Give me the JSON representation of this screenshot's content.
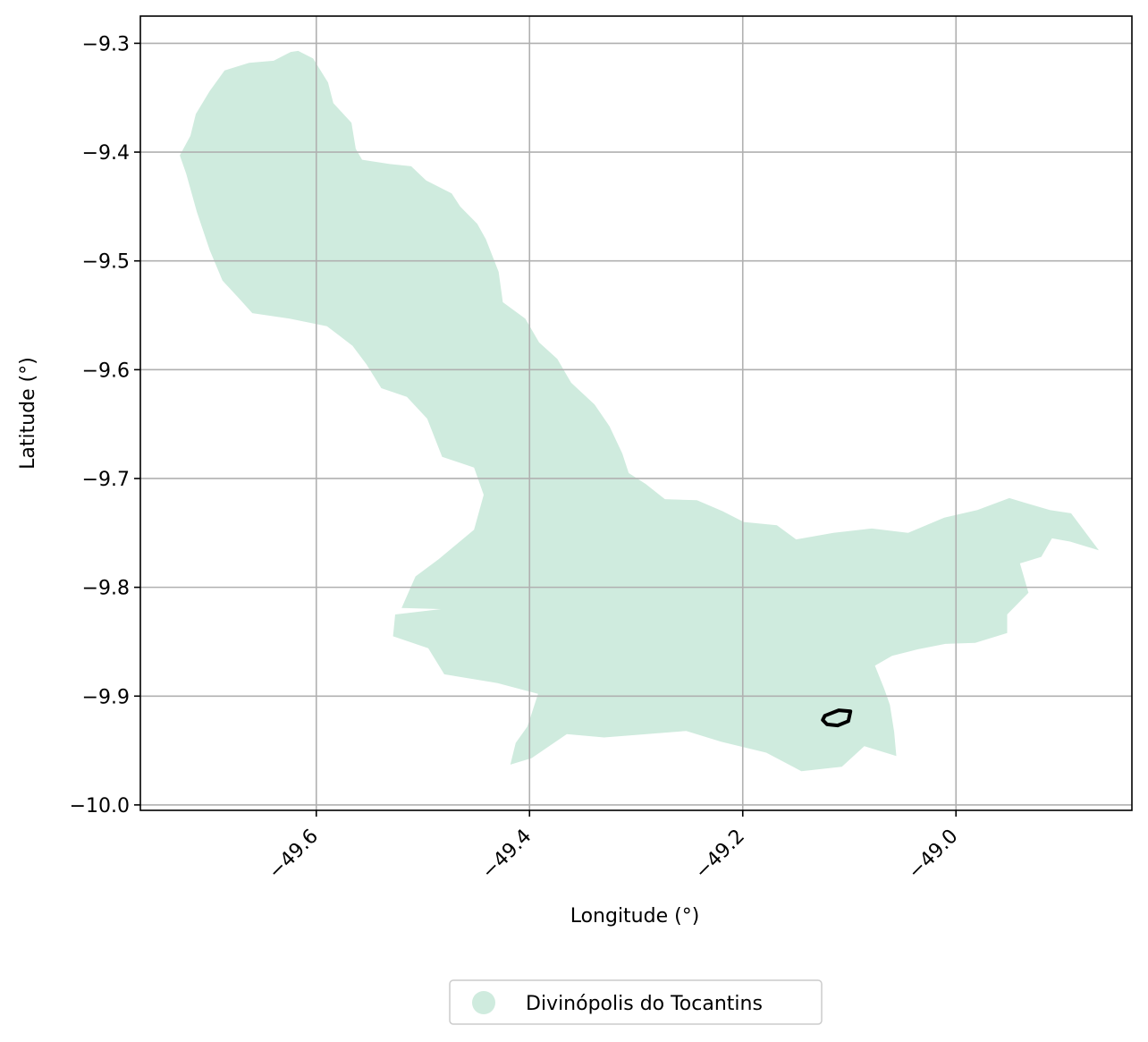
{
  "chart_data": {
    "type": "map",
    "xlabel": "Longitude (°)",
    "ylabel": "Latitude (°)",
    "xlim": [
      -49.765,
      -48.835
    ],
    "ylim": [
      -10.005,
      -9.275
    ],
    "grid": true,
    "xticks": [
      {
        "value": -49.6,
        "label": "−49.6"
      },
      {
        "value": -49.4,
        "label": "−49.4"
      },
      {
        "value": -49.2,
        "label": "−49.2"
      },
      {
        "value": -49.0,
        "label": "−49.0"
      }
    ],
    "yticks": [
      {
        "value": -9.3,
        "label": "−9.3"
      },
      {
        "value": -9.4,
        "label": "−9.4"
      },
      {
        "value": -9.5,
        "label": "−9.5"
      },
      {
        "value": -9.6,
        "label": "−9.6"
      },
      {
        "value": -9.7,
        "label": "−9.7"
      },
      {
        "value": -9.8,
        "label": "−9.8"
      },
      {
        "value": -9.9,
        "label": "−9.9"
      },
      {
        "value": -10.0,
        "label": "−10.0"
      }
    ],
    "regions": [
      {
        "name": "Divinópolis do Tocantins",
        "color": "#cfebde",
        "boundary": [
          [
            -49.617,
            -9.307
          ],
          [
            -49.603,
            -9.314
          ],
          [
            -49.589,
            -9.336
          ],
          [
            -49.584,
            -9.355
          ],
          [
            -49.567,
            -9.373
          ],
          [
            -49.563,
            -9.397
          ],
          [
            -49.557,
            -9.407
          ],
          [
            -49.531,
            -9.411
          ],
          [
            -49.511,
            -9.413
          ],
          [
            -49.497,
            -9.426
          ],
          [
            -49.473,
            -9.438
          ],
          [
            -49.465,
            -9.45
          ],
          [
            -49.449,
            -9.466
          ],
          [
            -49.441,
            -9.48
          ],
          [
            -49.429,
            -9.51
          ],
          [
            -49.425,
            -9.538
          ],
          [
            -49.404,
            -9.553
          ],
          [
            -49.391,
            -9.575
          ],
          [
            -49.374,
            -9.59
          ],
          [
            -49.361,
            -9.612
          ],
          [
            -49.339,
            -9.632
          ],
          [
            -49.325,
            -9.652
          ],
          [
            -49.313,
            -9.677
          ],
          [
            -49.307,
            -9.695
          ],
          [
            -49.291,
            -9.705
          ],
          [
            -49.273,
            -9.719
          ],
          [
            -49.243,
            -9.72
          ],
          [
            -49.219,
            -9.73
          ],
          [
            -49.199,
            -9.74
          ],
          [
            -49.168,
            -9.743
          ],
          [
            -49.15,
            -9.756
          ],
          [
            -49.115,
            -9.75
          ],
          [
            -49.079,
            -9.746
          ],
          [
            -49.045,
            -9.75
          ],
          [
            -49.011,
            -9.736
          ],
          [
            -48.98,
            -9.729
          ],
          [
            -48.95,
            -9.718
          ],
          [
            -48.912,
            -9.729
          ],
          [
            -48.892,
            -9.732
          ],
          [
            -48.866,
            -9.766
          ],
          [
            -48.893,
            -9.758
          ],
          [
            -48.91,
            -9.755
          ],
          [
            -48.92,
            -9.772
          ],
          [
            -48.94,
            -9.778
          ],
          [
            -48.932,
            -9.805
          ],
          [
            -48.952,
            -9.825
          ],
          [
            -48.952,
            -9.842
          ],
          [
            -48.982,
            -9.851
          ],
          [
            -49.01,
            -9.852
          ],
          [
            -49.036,
            -9.857
          ],
          [
            -49.06,
            -9.863
          ],
          [
            -49.076,
            -9.872
          ],
          [
            -49.067,
            -9.894
          ],
          [
            -49.062,
            -9.908
          ],
          [
            -49.058,
            -9.933
          ],
          [
            -49.056,
            -9.955
          ],
          [
            -49.086,
            -9.946
          ],
          [
            -49.107,
            -9.965
          ],
          [
            -49.145,
            -9.969
          ],
          [
            -49.178,
            -9.952
          ],
          [
            -49.22,
            -9.942
          ],
          [
            -49.253,
            -9.932
          ],
          [
            -49.29,
            -9.935
          ],
          [
            -49.33,
            -9.938
          ],
          [
            -49.365,
            -9.935
          ],
          [
            -49.398,
            -9.957
          ],
          [
            -49.418,
            -9.963
          ],
          [
            -49.413,
            -9.943
          ],
          [
            -49.402,
            -9.928
          ],
          [
            -49.392,
            -9.898
          ],
          [
            -49.43,
            -9.888
          ],
          [
            -49.48,
            -9.88
          ],
          [
            -49.495,
            -9.856
          ],
          [
            -49.528,
            -9.845
          ],
          [
            -49.526,
            -9.825
          ],
          [
            -49.483,
            -9.82
          ],
          [
            -49.52,
            -9.819
          ],
          [
            -49.507,
            -9.79
          ],
          [
            -49.485,
            -9.774
          ],
          [
            -49.452,
            -9.747
          ],
          [
            -49.443,
            -9.715
          ],
          [
            -49.452,
            -9.69
          ],
          [
            -49.482,
            -9.68
          ],
          [
            -49.496,
            -9.645
          ],
          [
            -49.515,
            -9.625
          ],
          [
            -49.539,
            -9.617
          ],
          [
            -49.553,
            -9.595
          ],
          [
            -49.566,
            -9.578
          ],
          [
            -49.59,
            -9.56
          ],
          [
            -49.625,
            -9.553
          ],
          [
            -49.66,
            -9.548
          ],
          [
            -49.672,
            -9.535
          ],
          [
            -49.688,
            -9.518
          ],
          [
            -49.7,
            -9.49
          ],
          [
            -49.712,
            -9.455
          ],
          [
            -49.722,
            -9.42
          ],
          [
            -49.728,
            -9.403
          ],
          [
            -49.718,
            -9.385
          ],
          [
            -49.713,
            -9.365
          ],
          [
            -49.7,
            -9.344
          ],
          [
            -49.686,
            -9.325
          ],
          [
            -49.663,
            -9.318
          ],
          [
            -49.64,
            -9.316
          ],
          [
            -49.624,
            -9.308
          ]
        ]
      }
    ],
    "outlines": [
      {
        "color": "#000000",
        "boundary": [
          [
            -49.123,
            -9.918
          ],
          [
            -49.11,
            -9.913
          ],
          [
            -49.099,
            -9.914
          ],
          [
            -49.101,
            -9.923
          ],
          [
            -49.111,
            -9.927
          ],
          [
            -49.121,
            -9.926
          ],
          [
            -49.125,
            -9.922
          ]
        ]
      }
    ],
    "legend": {
      "placement": "bottom-center",
      "entries": [
        {
          "label": "Divinópolis do Tocantins",
          "color": "#cfebde"
        }
      ]
    }
  }
}
